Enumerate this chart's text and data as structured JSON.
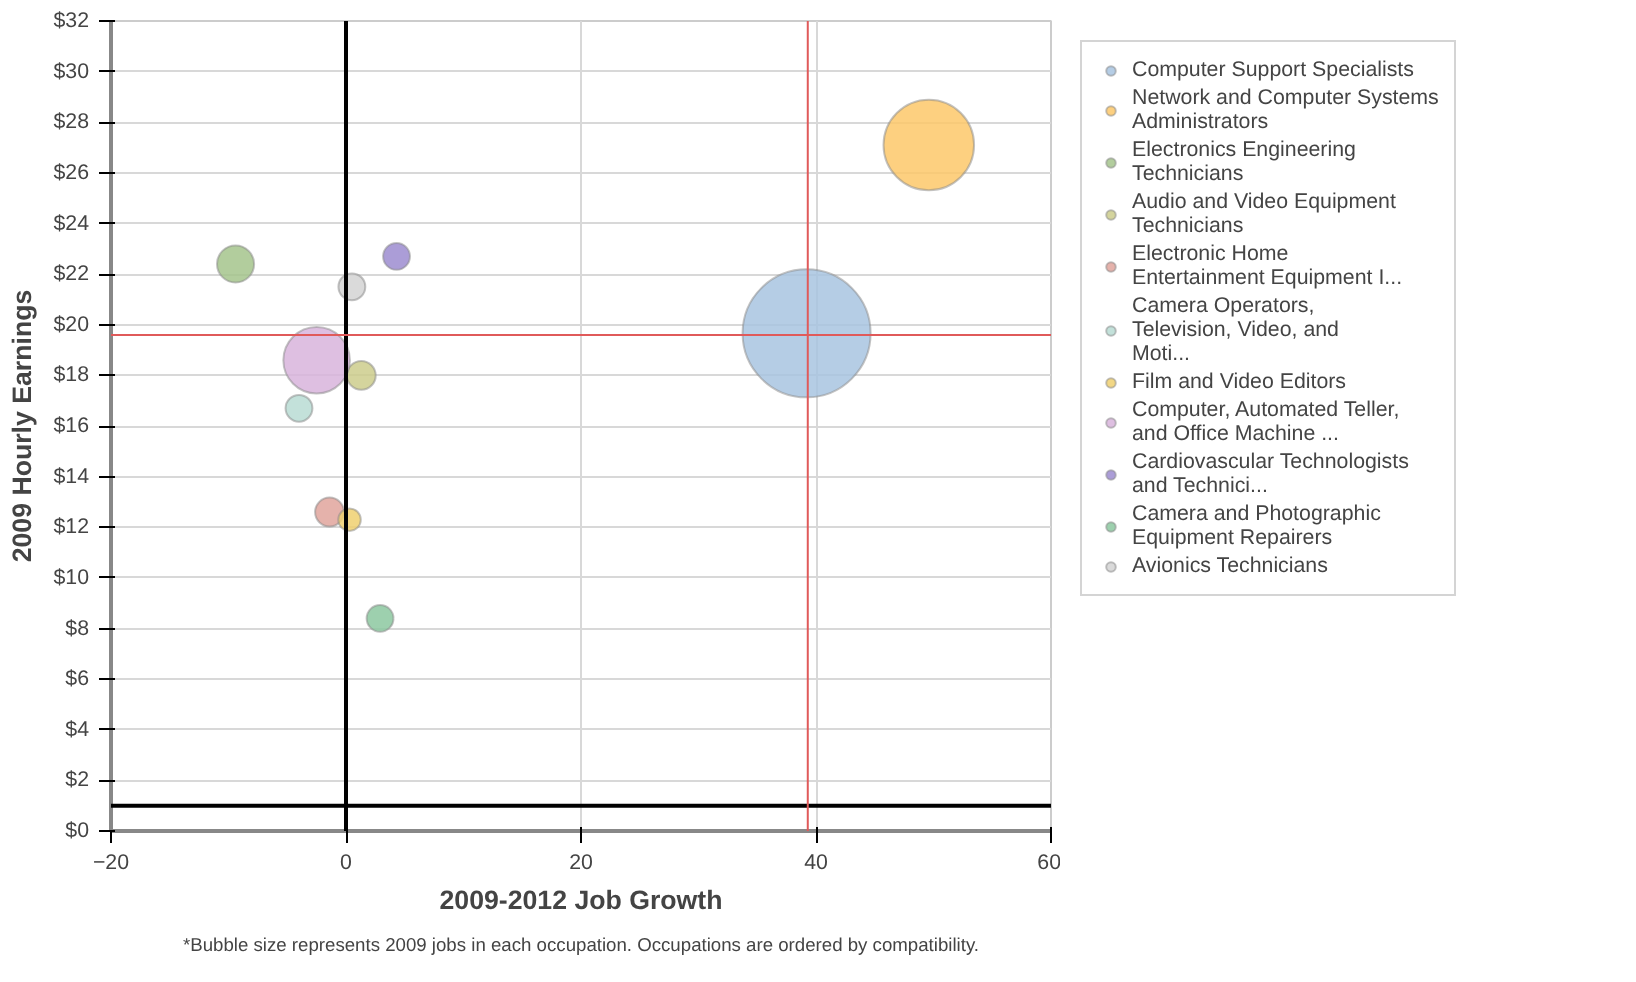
{
  "chart_data": {
    "type": "bubble",
    "xlabel": "2009-2012 Job Growth",
    "ylabel": "2009 Hourly Earnings",
    "annotations": [
      "*Bubble size represents 2009 jobs in each occupation. Occupations are ordered by compatibility."
    ],
    "xlim": [
      -20,
      60
    ],
    "xticks": [
      -20,
      0,
      20,
      40,
      60
    ],
    "ylim": [
      0,
      32
    ],
    "yticks": [
      {
        "value": 0,
        "label": "$0"
      },
      {
        "value": 2,
        "label": "$2"
      },
      {
        "value": 4,
        "label": "$4"
      },
      {
        "value": 6,
        "label": "$6"
      },
      {
        "value": 8,
        "label": "$8"
      },
      {
        "value": 10,
        "label": "$10"
      },
      {
        "value": 12,
        "label": "$12"
      },
      {
        "value": 14,
        "label": "$14"
      },
      {
        "value": 16,
        "label": "$16"
      },
      {
        "value": 18,
        "label": "$18"
      },
      {
        "value": 20,
        "label": "$20"
      },
      {
        "value": 22,
        "label": "$22"
      },
      {
        "value": 24,
        "label": "$24"
      },
      {
        "value": 26,
        "label": "$26"
      },
      {
        "value": 28,
        "label": "$28"
      },
      {
        "value": 30,
        "label": "$30"
      },
      {
        "value": 32,
        "label": "$32"
      }
    ],
    "grid": true,
    "legend": "right",
    "ref_lines": [
      {
        "axis": "x",
        "value": 0,
        "color": "#000000"
      },
      {
        "axis": "y",
        "value": 1,
        "color": "#000000"
      },
      {
        "axis": "x",
        "value": 39.3,
        "color": "#e05a5a"
      },
      {
        "axis": "y",
        "value": 19.6,
        "color": "#e05a5a"
      }
    ],
    "series": [
      {
        "name": "Computer Support Specialists",
        "color": "#a8c4e0",
        "x": [
          39.2
        ],
        "values": [
          19.66
        ],
        "sizes": [
          1
        ]
      },
      {
        "name": "Network and Computer Systems Administrators",
        "color": "#fdc86a",
        "x": [
          49.6
        ],
        "values": [
          27.1
        ],
        "sizes": [
          0.5
        ]
      },
      {
        "name": "Electronics Engineering Technicians",
        "color": "#a4c48c",
        "x": [
          -9.4
        ],
        "values": [
          22.4
        ],
        "sizes": [
          0.084
        ]
      },
      {
        "name": "Audio and Video Equipment Technicians",
        "color": "#cccc8c",
        "x": [
          1.3
        ],
        "values": [
          18.0
        ],
        "sizes": [
          0.051
        ]
      },
      {
        "name": "Electronic Home Entertainment Equipment I...",
        "color": "#e0a49c",
        "x": [
          -1.4
        ],
        "values": [
          12.6
        ],
        "sizes": [
          0.051
        ]
      },
      {
        "name": "Camera Operators, Television, Video, and Moti...",
        "color": "#b8dcd4",
        "x": [
          -4.0
        ],
        "values": [
          16.7
        ],
        "sizes": [
          0.044
        ]
      },
      {
        "name": "Film and Video Editors",
        "color": "#f0d070",
        "x": [
          0.3
        ],
        "values": [
          12.3
        ],
        "sizes": [
          0.031
        ]
      },
      {
        "name": "Computer, Automated Teller, and Office Machine ...",
        "color": "#d8b4dc",
        "x": [
          -2.5
        ],
        "values": [
          18.6
        ],
        "sizes": [
          0.27
        ]
      },
      {
        "name": "Cardiovascular Technologists and Technici...",
        "color": "#9c8cd0",
        "x": [
          4.3
        ],
        "values": [
          22.7
        ],
        "sizes": [
          0.044
        ]
      },
      {
        "name": "Camera and Photographic Equipment Repairers",
        "color": "#8cc8a0",
        "x": [
          2.9
        ],
        "values": [
          8.4
        ],
        "sizes": [
          0.044
        ]
      },
      {
        "name": "Avionics Technicians",
        "color": "#d4d4d4",
        "x": [
          0.5
        ],
        "values": [
          21.5
        ],
        "sizes": [
          0.044
        ]
      }
    ]
  }
}
